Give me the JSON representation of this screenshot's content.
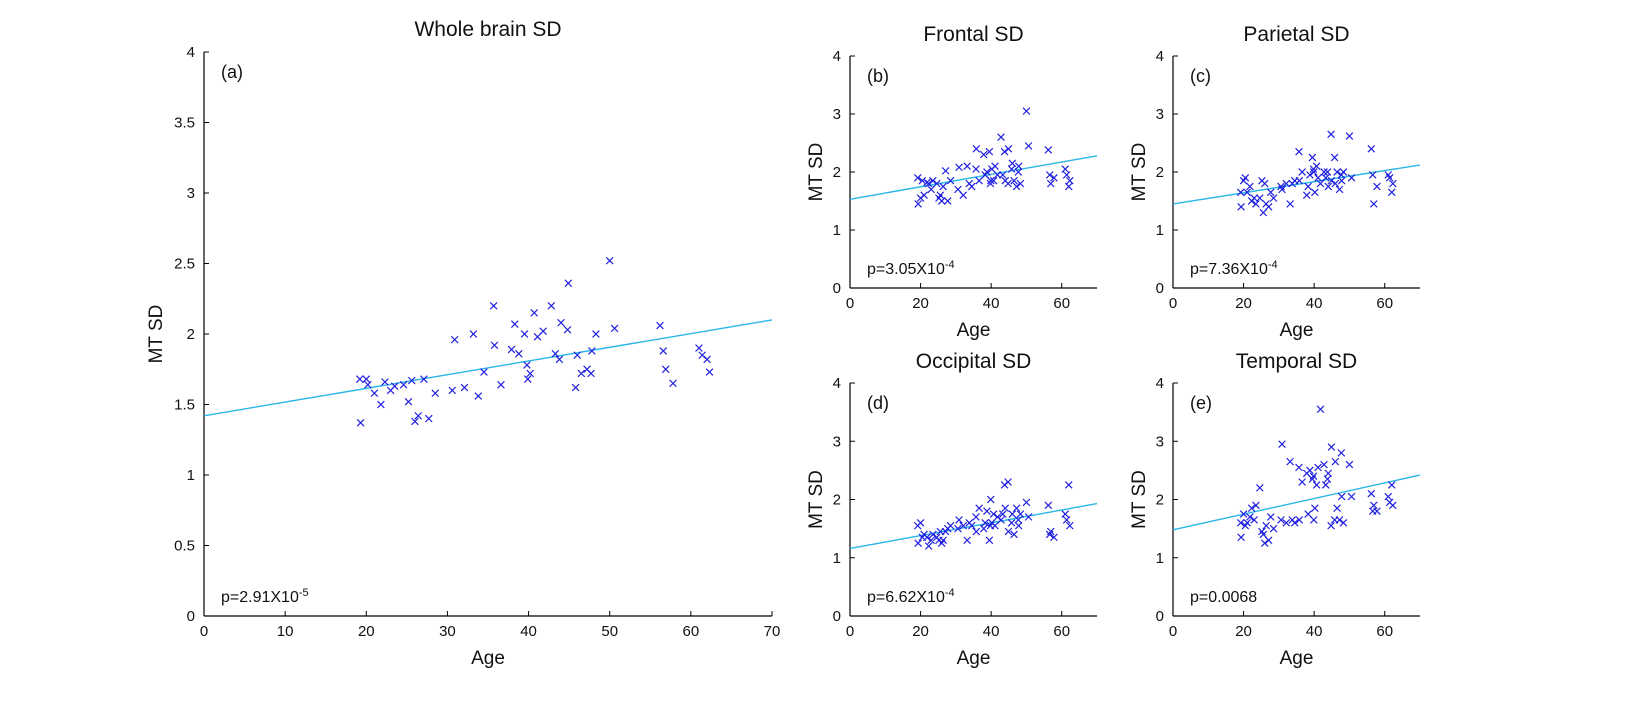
{
  "figure": {
    "marker_color": "#2020e0",
    "fit_color": "#29b6e8",
    "axis_color": "#000000"
  },
  "chart_data": [
    {
      "id": "a",
      "type": "scatter",
      "title": "Whole brain SD",
      "panel_label": "(a)",
      "xlabel": "Age",
      "ylabel": "MT SD",
      "xlim": [
        0,
        70
      ],
      "ylim": [
        0,
        4
      ],
      "xticks": [
        0,
        10,
        20,
        30,
        40,
        50,
        60,
        70
      ],
      "yticks": [
        0,
        0.5,
        1,
        1.5,
        2,
        2.5,
        3,
        3.5,
        4
      ],
      "p_text": {
        "base": "p=2.91X10",
        "exp": "-5"
      },
      "fit": {
        "x": [
          0,
          70
        ],
        "y": [
          1.42,
          2.1
        ]
      },
      "points": [
        [
          19.2,
          1.68
        ],
        [
          19.3,
          1.37
        ],
        [
          20,
          1.68
        ],
        [
          20.2,
          1.64
        ],
        [
          21,
          1.58
        ],
        [
          21.8,
          1.5
        ],
        [
          22.3,
          1.66
        ],
        [
          23,
          1.6
        ],
        [
          23.5,
          1.63
        ],
        [
          24.6,
          1.64
        ],
        [
          25.2,
          1.52
        ],
        [
          25.6,
          1.67
        ],
        [
          26,
          1.38
        ],
        [
          26.4,
          1.42
        ],
        [
          27.1,
          1.68
        ],
        [
          27.7,
          1.4
        ],
        [
          28.5,
          1.58
        ],
        [
          30.6,
          1.6
        ],
        [
          30.9,
          1.96
        ],
        [
          32.1,
          1.62
        ],
        [
          33.2,
          2.0
        ],
        [
          33.8,
          1.56
        ],
        [
          34.5,
          1.73
        ],
        [
          35.7,
          2.2
        ],
        [
          35.8,
          1.92
        ],
        [
          36.6,
          1.64
        ],
        [
          37.9,
          1.89
        ],
        [
          38.3,
          2.07
        ],
        [
          38.8,
          1.86
        ],
        [
          39.5,
          2.0
        ],
        [
          39.8,
          1.78
        ],
        [
          39.9,
          1.68
        ],
        [
          40.2,
          1.72
        ],
        [
          40.7,
          2.15
        ],
        [
          41.1,
          1.98
        ],
        [
          41.8,
          2.02
        ],
        [
          42.8,
          2.2
        ],
        [
          43.3,
          1.86
        ],
        [
          43.8,
          1.82
        ],
        [
          44.0,
          2.08
        ],
        [
          44.8,
          2.03
        ],
        [
          44.9,
          2.36
        ],
        [
          45.8,
          1.62
        ],
        [
          46.0,
          1.85
        ],
        [
          46.5,
          1.72
        ],
        [
          47.2,
          1.75
        ],
        [
          47.7,
          1.72
        ],
        [
          47.8,
          1.88
        ],
        [
          48.3,
          2.0
        ],
        [
          50.0,
          2.52
        ],
        [
          50.6,
          2.04
        ],
        [
          56.2,
          2.06
        ],
        [
          56.6,
          1.88
        ],
        [
          56.9,
          1.75
        ],
        [
          57.8,
          1.65
        ],
        [
          61.0,
          1.9
        ],
        [
          61.4,
          1.85
        ],
        [
          62.0,
          1.82
        ],
        [
          62.3,
          1.73
        ]
      ]
    },
    {
      "id": "b",
      "type": "scatter",
      "title": "Frontal SD",
      "panel_label": "(b)",
      "xlabel": "Age",
      "ylabel": "MT SD",
      "xlim": [
        0,
        70
      ],
      "ylim": [
        0,
        4
      ],
      "xticks": [
        0,
        20,
        40,
        60
      ],
      "yticks": [
        0,
        1,
        2,
        3,
        4
      ],
      "p_text": {
        "base": "p=3.05X10",
        "exp": "-4"
      },
      "fit": {
        "x": [
          0,
          70
        ],
        "y": [
          1.53,
          2.28
        ]
      },
      "points": [
        [
          19.2,
          1.9
        ],
        [
          19.3,
          1.45
        ],
        [
          20,
          1.55
        ],
        [
          20.5,
          1.85
        ],
        [
          21,
          1.6
        ],
        [
          21.8,
          1.82
        ],
        [
          22.3,
          1.8
        ],
        [
          23,
          1.7
        ],
        [
          23.5,
          1.85
        ],
        [
          24.6,
          1.8
        ],
        [
          25.2,
          1.55
        ],
        [
          25.6,
          1.6
        ],
        [
          26,
          1.5
        ],
        [
          26.4,
          1.75
        ],
        [
          27.1,
          2.02
        ],
        [
          27.7,
          1.5
        ],
        [
          28.5,
          1.85
        ],
        [
          30.6,
          1.7
        ],
        [
          30.9,
          2.08
        ],
        [
          32.1,
          1.6
        ],
        [
          33.2,
          2.1
        ],
        [
          33.8,
          1.8
        ],
        [
          34.5,
          1.75
        ],
        [
          35.7,
          2.05
        ],
        [
          35.8,
          2.4
        ],
        [
          36.6,
          1.85
        ],
        [
          37.9,
          2.3
        ],
        [
          38.3,
          1.95
        ],
        [
          38.8,
          2.0
        ],
        [
          39.5,
          2.35
        ],
        [
          39.8,
          1.8
        ],
        [
          39.9,
          1.85
        ],
        [
          40.2,
          2.05
        ],
        [
          40.7,
          1.85
        ],
        [
          41.1,
          2.1
        ],
        [
          41.8,
          1.95
        ],
        [
          42.8,
          2.6
        ],
        [
          43.3,
          1.95
        ],
        [
          43.8,
          2.35
        ],
        [
          44.0,
          1.85
        ],
        [
          44.8,
          1.8
        ],
        [
          44.9,
          2.4
        ],
        [
          45.8,
          2.05
        ],
        [
          46.0,
          2.15
        ],
        [
          46.5,
          1.85
        ],
        [
          47.2,
          1.75
        ],
        [
          47.7,
          2.0
        ],
        [
          47.8,
          2.1
        ],
        [
          48.3,
          1.8
        ],
        [
          50.0,
          3.05
        ],
        [
          50.6,
          2.45
        ],
        [
          56.2,
          2.38
        ],
        [
          56.6,
          1.95
        ],
        [
          56.9,
          1.8
        ],
        [
          57.8,
          1.9
        ],
        [
          61.0,
          2.05
        ],
        [
          61.4,
          1.95
        ],
        [
          62.0,
          1.75
        ],
        [
          62.3,
          1.85
        ]
      ]
    },
    {
      "id": "c",
      "type": "scatter",
      "title": "Parietal SD",
      "panel_label": "(c)",
      "xlabel": "Age",
      "ylabel": "MT SD",
      "xlim": [
        0,
        70
      ],
      "ylim": [
        0,
        4
      ],
      "xticks": [
        0,
        20,
        40,
        60
      ],
      "yticks": [
        0,
        1,
        2,
        3,
        4
      ],
      "p_text": {
        "base": "p=7.36X10",
        "exp": "-4"
      },
      "fit": {
        "x": [
          0,
          70
        ],
        "y": [
          1.45,
          2.12
        ]
      },
      "points": [
        [
          19.2,
          1.65
        ],
        [
          19.3,
          1.4
        ],
        [
          20,
          1.85
        ],
        [
          20.5,
          1.9
        ],
        [
          21,
          1.65
        ],
        [
          21.8,
          1.75
        ],
        [
          22.3,
          1.5
        ],
        [
          23,
          1.55
        ],
        [
          23.5,
          1.45
        ],
        [
          24.6,
          1.55
        ],
        [
          25.2,
          1.85
        ],
        [
          25.6,
          1.3
        ],
        [
          26,
          1.8
        ],
        [
          26.4,
          1.45
        ],
        [
          27.1,
          1.4
        ],
        [
          27.7,
          1.65
        ],
        [
          28.5,
          1.55
        ],
        [
          30.6,
          1.75
        ],
        [
          30.9,
          1.7
        ],
        [
          32.1,
          1.8
        ],
        [
          33.2,
          1.45
        ],
        [
          33.8,
          1.8
        ],
        [
          34.5,
          1.85
        ],
        [
          35.7,
          2.35
        ],
        [
          35.8,
          1.85
        ],
        [
          36.6,
          2.0
        ],
        [
          37.9,
          1.6
        ],
        [
          38.3,
          1.75
        ],
        [
          38.8,
          1.95
        ],
        [
          39.5,
          2.25
        ],
        [
          39.8,
          2.05
        ],
        [
          39.9,
          2.0
        ],
        [
          40.2,
          1.65
        ],
        [
          40.7,
          2.1
        ],
        [
          41.1,
          1.9
        ],
        [
          41.8,
          1.8
        ],
        [
          42.8,
          2.0
        ],
        [
          43.3,
          1.9
        ],
        [
          43.8,
          2.0
        ],
        [
          44.0,
          1.75
        ],
        [
          44.8,
          2.65
        ],
        [
          44.9,
          1.85
        ],
        [
          45.8,
          2.25
        ],
        [
          46.0,
          1.8
        ],
        [
          46.5,
          2.0
        ],
        [
          47.2,
          1.7
        ],
        [
          47.7,
          1.95
        ],
        [
          47.8,
          1.85
        ],
        [
          48.3,
          2.0
        ],
        [
          50.0,
          2.62
        ],
        [
          50.6,
          1.9
        ],
        [
          56.2,
          2.4
        ],
        [
          56.6,
          1.95
        ],
        [
          56.9,
          1.45
        ],
        [
          57.8,
          1.75
        ],
        [
          61.0,
          1.95
        ],
        [
          61.4,
          1.9
        ],
        [
          62.0,
          1.65
        ],
        [
          62.3,
          1.8
        ]
      ]
    },
    {
      "id": "d",
      "type": "scatter",
      "title": "Occipital SD",
      "panel_label": "(d)",
      "xlabel": "Age",
      "ylabel": "MT SD",
      "xlim": [
        0,
        70
      ],
      "ylim": [
        0,
        4
      ],
      "xticks": [
        0,
        20,
        40,
        60
      ],
      "yticks": [
        0,
        1,
        2,
        3,
        4
      ],
      "p_text": {
        "base": "p=6.62X10",
        "exp": "-4"
      },
      "fit": {
        "x": [
          0,
          70
        ],
        "y": [
          1.16,
          1.93
        ]
      },
      "points": [
        [
          19.2,
          1.55
        ],
        [
          19.3,
          1.25
        ],
        [
          20,
          1.6
        ],
        [
          20.5,
          1.35
        ],
        [
          21,
          1.4
        ],
        [
          21.8,
          1.35
        ],
        [
          22.3,
          1.2
        ],
        [
          23,
          1.3
        ],
        [
          23.5,
          1.4
        ],
        [
          24.6,
          1.35
        ],
        [
          25.2,
          1.3
        ],
        [
          25.6,
          1.45
        ],
        [
          26,
          1.25
        ],
        [
          26.4,
          1.3
        ],
        [
          27.1,
          1.45
        ],
        [
          27.7,
          1.5
        ],
        [
          28.5,
          1.55
        ],
        [
          30.6,
          1.5
        ],
        [
          30.9,
          1.65
        ],
        [
          32.1,
          1.55
        ],
        [
          33.2,
          1.3
        ],
        [
          33.8,
          1.6
        ],
        [
          34.5,
          1.55
        ],
        [
          35.7,
          1.7
        ],
        [
          35.8,
          1.45
        ],
        [
          36.6,
          1.85
        ],
        [
          37.9,
          1.5
        ],
        [
          38.3,
          1.6
        ],
        [
          38.8,
          1.8
        ],
        [
          39.5,
          1.3
        ],
        [
          39.8,
          1.55
        ],
        [
          39.9,
          2.0
        ],
        [
          40.2,
          1.6
        ],
        [
          40.7,
          1.75
        ],
        [
          41.1,
          1.55
        ],
        [
          41.8,
          1.7
        ],
        [
          42.8,
          1.65
        ],
        [
          43.3,
          1.75
        ],
        [
          43.8,
          2.25
        ],
        [
          44.0,
          1.85
        ],
        [
          44.8,
          2.3
        ],
        [
          44.9,
          1.45
        ],
        [
          45.8,
          1.6
        ],
        [
          46.0,
          1.75
        ],
        [
          46.5,
          1.4
        ],
        [
          47.2,
          1.85
        ],
        [
          47.7,
          1.65
        ],
        [
          47.8,
          1.55
        ],
        [
          48.3,
          1.75
        ],
        [
          50.0,
          1.95
        ],
        [
          50.6,
          1.7
        ],
        [
          56.2,
          1.9
        ],
        [
          56.6,
          1.4
        ],
        [
          56.9,
          1.45
        ],
        [
          57.8,
          1.35
        ],
        [
          61.0,
          1.75
        ],
        [
          61.4,
          1.65
        ],
        [
          62.0,
          2.25
        ],
        [
          62.3,
          1.55
        ]
      ]
    },
    {
      "id": "e",
      "type": "scatter",
      "title": "Temporal SD",
      "panel_label": "(e)",
      "xlabel": "Age",
      "ylabel": "MT SD",
      "xlim": [
        0,
        70
      ],
      "ylim": [
        0,
        4
      ],
      "xticks": [
        0,
        20,
        40,
        60
      ],
      "yticks": [
        0,
        1,
        2,
        3,
        4
      ],
      "p_text": {
        "base": "p=0.0068",
        "exp": ""
      },
      "fit": {
        "x": [
          0,
          70
        ],
        "y": [
          1.48,
          2.42
        ]
      },
      "points": [
        [
          19.2,
          1.6
        ],
        [
          19.3,
          1.35
        ],
        [
          20,
          1.75
        ],
        [
          20.5,
          1.55
        ],
        [
          21,
          1.6
        ],
        [
          21.8,
          1.7
        ],
        [
          22.3,
          1.85
        ],
        [
          23,
          1.65
        ],
        [
          23.5,
          1.9
        ],
        [
          24.6,
          2.2
        ],
        [
          25.2,
          1.45
        ],
        [
          25.6,
          1.4
        ],
        [
          26,
          1.25
        ],
        [
          26.4,
          1.55
        ],
        [
          27.1,
          1.3
        ],
        [
          27.7,
          1.7
        ],
        [
          28.5,
          1.5
        ],
        [
          30.6,
          1.65
        ],
        [
          30.9,
          2.95
        ],
        [
          32.1,
          1.6
        ],
        [
          33.2,
          2.65
        ],
        [
          33.8,
          1.65
        ],
        [
          34.5,
          1.6
        ],
        [
          35.7,
          2.55
        ],
        [
          35.8,
          1.65
        ],
        [
          36.6,
          2.3
        ],
        [
          37.9,
          2.45
        ],
        [
          38.3,
          1.75
        ],
        [
          38.8,
          2.5
        ],
        [
          39.5,
          2.35
        ],
        [
          39.8,
          2.4
        ],
        [
          39.9,
          1.65
        ],
        [
          40.2,
          1.85
        ],
        [
          40.7,
          2.25
        ],
        [
          41.1,
          2.55
        ],
        [
          41.8,
          3.55
        ],
        [
          42.8,
          2.6
        ],
        [
          43.3,
          2.25
        ],
        [
          43.8,
          2.35
        ],
        [
          44.0,
          2.45
        ],
        [
          44.8,
          1.55
        ],
        [
          44.9,
          2.9
        ],
        [
          45.8,
          1.65
        ],
        [
          46.0,
          2.65
        ],
        [
          46.5,
          1.85
        ],
        [
          47.2,
          1.65
        ],
        [
          47.7,
          2.8
        ],
        [
          47.8,
          2.05
        ],
        [
          48.3,
          1.6
        ],
        [
          50.0,
          2.6
        ],
        [
          50.6,
          2.05
        ],
        [
          56.2,
          2.1
        ],
        [
          56.6,
          1.8
        ],
        [
          56.9,
          1.9
        ],
        [
          57.8,
          1.8
        ],
        [
          61.0,
          2.05
        ],
        [
          61.4,
          1.95
        ],
        [
          62.0,
          2.25
        ],
        [
          62.3,
          1.9
        ]
      ]
    }
  ]
}
